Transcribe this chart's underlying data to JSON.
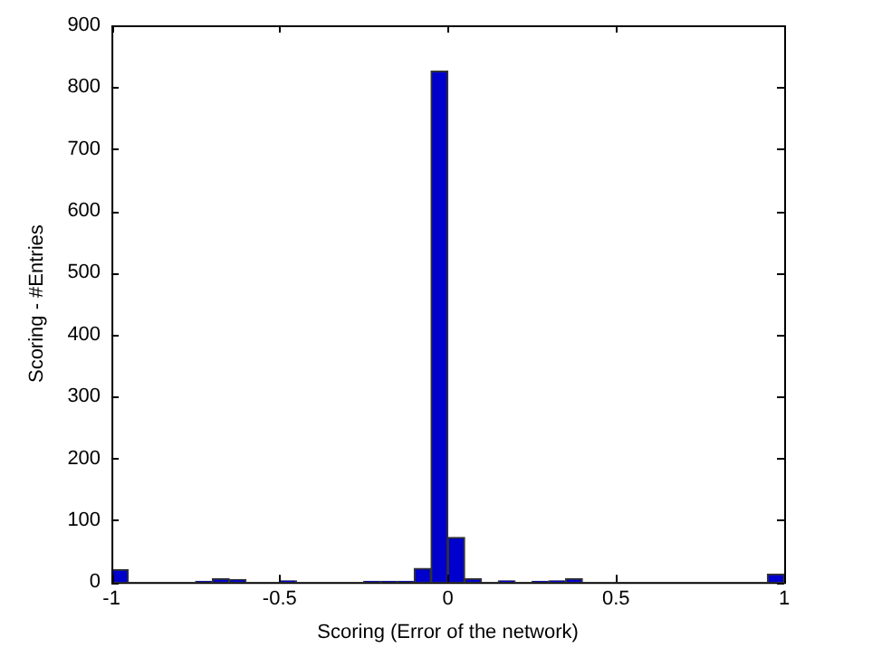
{
  "chart_data": {
    "type": "histogram",
    "xlabel": "Scoring (Error of the network)",
    "ylabel": "Scoring - #Entries",
    "bins": [
      -1,
      -0.95,
      -0.9,
      -0.85,
      -0.8,
      -0.75,
      -0.7,
      -0.65,
      -0.6,
      -0.55,
      -0.5,
      -0.45,
      -0.4,
      -0.35,
      -0.3,
      -0.25,
      -0.2,
      -0.15,
      -0.1,
      -0.05,
      0,
      0.05,
      0.1,
      0.15,
      0.2,
      0.25,
      0.3,
      0.35,
      0.4,
      0.45,
      0.5,
      0.55,
      0.6,
      0.65,
      0.7,
      0.75,
      0.8,
      0.85,
      0.9,
      0.95,
      1
    ],
    "values": [
      20,
      0,
      0,
      0,
      0,
      1,
      5,
      4,
      0,
      0,
      2,
      0,
      0,
      0,
      0,
      1,
      1,
      1,
      22,
      826,
      72,
      5,
      0,
      2,
      0,
      1,
      2,
      5,
      0,
      0,
      0,
      0,
      0,
      0,
      0,
      0,
      0,
      0,
      0,
      13
    ],
    "color": "#0000cc",
    "xlim": [
      -1,
      1
    ],
    "xticks": [
      -1,
      -0.5,
      0,
      0.5,
      1
    ],
    "ylim": [
      0,
      900
    ],
    "yticks": [
      0,
      100,
      200,
      300,
      400,
      500,
      600,
      700,
      800,
      900
    ],
    "grid": false,
    "legend": false
  }
}
